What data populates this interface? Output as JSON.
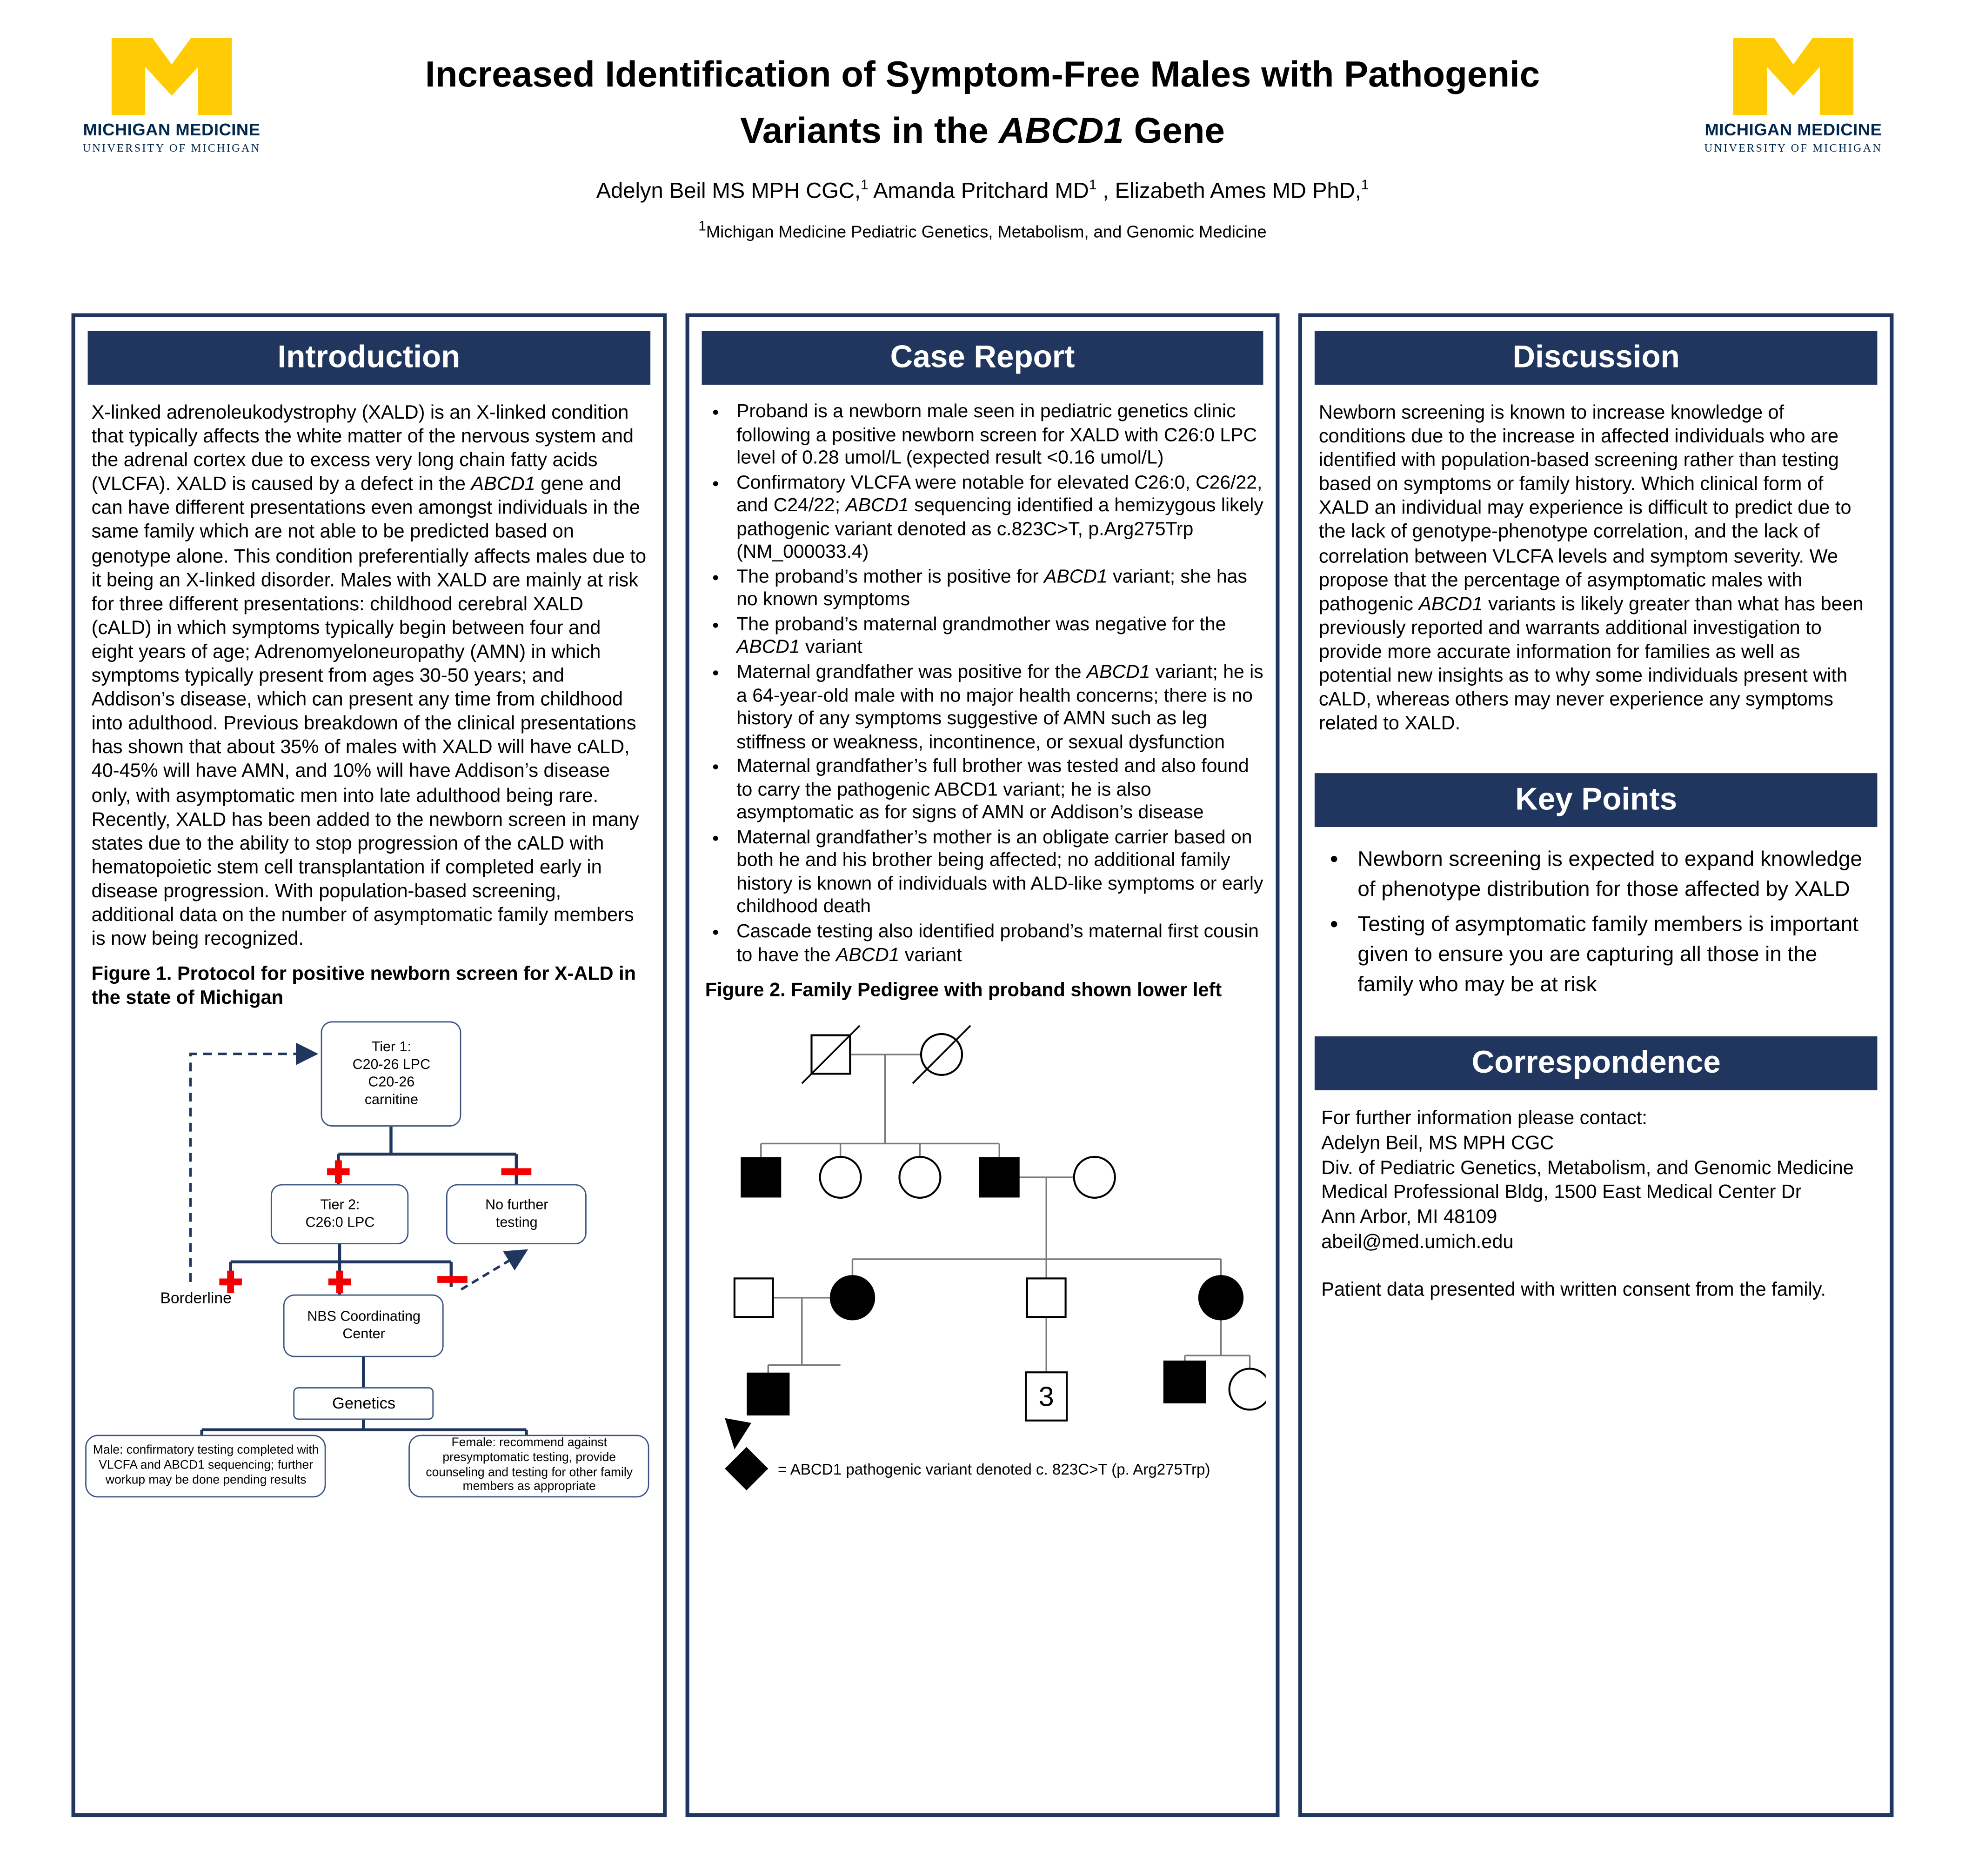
{
  "colors": {
    "navy": "#21365f",
    "blue": "#00274c",
    "maize": "#ffcb05",
    "red": "#f30000",
    "pedigree_line_gray": "#7a7a7a"
  },
  "logo": {
    "m_letter": "M",
    "line1": "MICHIGAN MEDICINE",
    "line2": "UNIVERSITY OF MICHIGAN"
  },
  "header": {
    "title_line1": "Increased Identification of Symptom-Free Males with Pathogenic",
    "title_line2_rich": [
      {
        "t": "Variants in the "
      },
      {
        "t": "ABCD1",
        "i": true
      },
      {
        "t": " Gene"
      }
    ],
    "authors_rich": [
      {
        "t": "Adelyn Beil MS MPH CGC,"
      },
      {
        "t": "1",
        "s": true
      },
      {
        "t": " Amanda Pritchard MD"
      },
      {
        "t": "1",
        "s": true
      },
      {
        "t": " , Elizabeth Ames MD PhD,"
      },
      {
        "t": "1",
        "s": true
      }
    ],
    "affiliation_rich": [
      {
        "t": "1",
        "s": true
      },
      {
        "t": "Michigan Medicine Pediatric Genetics, Metabolism, and Genomic Medicine"
      }
    ]
  },
  "intro": {
    "header": "Introduction",
    "body_rich": [
      {
        "t": "X-linked adrenoleukodystrophy (XALD) is an X-linked condition that typically affects the white matter of the nervous system and the adrenal cortex due to excess very long chain fatty acids (VLCFA). XALD is caused by a defect in the "
      },
      {
        "t": "ABCD1",
        "i": true
      },
      {
        "t": " gene and can have different presentations even amongst individuals in the same family which are not able to be predicted based on genotype alone. This condition preferentially affects males due to it being an X-linked disorder. Males with XALD are mainly at risk for three different presentations: childhood cerebral XALD (cALD) in which symptoms typically begin between four and eight years of age; Adrenomyeloneuropathy (AMN) in which symptoms typically present from ages 30-50 years; and Addison’s disease, which can present any time from childhood into adulthood. Previous breakdown of the clinical presentations has shown that about 35% of males with XALD will have cALD, 40-45% will have AMN, and 10% will have Addison’s disease only, with asymptomatic men into late adulthood being rare. Recently, XALD has been added to the newborn screen in many states due to the ability to stop progression of the cALD with hematopoietic stem cell transplantation if completed early in disease progression. With population-based screening, additional data on the number of asymptomatic family members is now being recognized."
      }
    ],
    "fig1_caption": "Figure 1. Protocol for positive newborn screen for X-ALD in the state of Michigan",
    "flowchart": {
      "tier1": [
        "Tier 1:",
        "C20-26 LPC",
        "C20-26",
        "carnitine"
      ],
      "tier2": [
        "Tier 2:",
        "C26:0 LPC"
      ],
      "no_further": [
        "No further",
        "testing"
      ],
      "nbs": [
        "NBS Coordinating",
        "Center"
      ],
      "genetics": "Genetics",
      "borderline": "Borderline",
      "male_box": "Male: confirmatory testing completed with VLCFA and ABCD1 sequencing; further workup may be done pending results",
      "female_box": "Female: recommend against presymptomatic testing, provide counseling and testing for other family members as appropriate"
    }
  },
  "case_report": {
    "header": "Case Report",
    "bullets": [
      [
        {
          "t": "Proband is a newborn male seen in pediatric genetics clinic following a positive newborn screen for XALD with C26:0 LPC level of 0.28 umol/L (expected result <0.16 umol/L)"
        }
      ],
      [
        {
          "t": "Confirmatory VLCFA were notable for elevated C26:0, C26/22, and C24/22; "
        },
        {
          "t": "ABCD1",
          "i": true
        },
        {
          "t": " sequencing identified a hemizygous likely pathogenic variant denoted as c.823C>T, p.Arg275Trp (NM_000033.4)"
        }
      ],
      [
        {
          "t": "The proband’s mother is positive for "
        },
        {
          "t": "ABCD1",
          "i": true
        },
        {
          "t": " variant; she has no known symptoms"
        }
      ],
      [
        {
          "t": "The proband’s maternal grandmother was negative for the "
        },
        {
          "t": "ABCD1",
          "i": true
        },
        {
          "t": " variant"
        }
      ],
      [
        {
          "t": "Maternal grandfather was positive for the "
        },
        {
          "t": "ABCD1",
          "i": true
        },
        {
          "t": " variant; he is a 64-year-old male with no major health concerns; there is no history of any symptoms suggestive of AMN such as leg stiffness or weakness, incontinence, or sexual dysfunction"
        }
      ],
      [
        {
          "t": "Maternal grandfather’s full brother was tested and also found to carry the pathogenic ABCD1 variant; he is also asymptomatic as for signs of AMN or Addison’s disease"
        }
      ],
      [
        {
          "t": "Maternal grandfather’s mother is an obligate carrier based on both he and his brother being affected; no additional family history is known of individuals with ALD-like symptoms or early childhood death"
        }
      ],
      [
        {
          "t": "Cascade testing also identified proband’s maternal first cousin to have the "
        },
        {
          "t": "ABCD1",
          "i": true
        },
        {
          "t": " variant"
        }
      ]
    ],
    "fig2_caption": "Figure 2. Family Pedigree with proband shown lower left",
    "pedigree": {
      "count_label": "3",
      "legend": "= ABCD1 pathogenic variant denoted c. 823C>T  (p. Arg275Trp)"
    }
  },
  "discussion": {
    "header": "Discussion",
    "body_rich": [
      {
        "t": "Newborn screening is known to increase knowledge of conditions due to the increase in affected individuals who are identified with population-based screening rather than testing based on symptoms or family history. Which clinical form of XALD an individual may experience is difficult to predict due to the lack of genotype-phenotype correlation, and the lack of correlation between VLCFA levels and symptom severity. We propose that the percentage of asymptomatic males with pathogenic "
      },
      {
        "t": "ABCD1",
        "i": true
      },
      {
        "t": " variants is likely greater than what has been previously reported and warrants additional investigation to provide more accurate information for families as well as potential new insights as to why some individuals present with cALD, whereas others may never experience any symptoms related to XALD."
      }
    ]
  },
  "key_points": {
    "header": "Key Points",
    "bullets": [
      "Newborn screening is expected to expand knowledge of phenotype distribution for those affected by XALD",
      "Testing of asymptomatic family members is important given to ensure you are capturing all those in the family who may be at risk"
    ]
  },
  "correspondence": {
    "header": "Correspondence",
    "lines": [
      "For further information please contact:",
      "Adelyn Beil, MS MPH CGC",
      "Div. of Pediatric Genetics, Metabolism, and Genomic Medicine",
      "Medical Professional Bldg, 1500 East Medical Center Dr",
      "Ann Arbor, MI 48109",
      "abeil@med.umich.edu"
    ],
    "note": "Patient data presented with written consent from the family."
  }
}
